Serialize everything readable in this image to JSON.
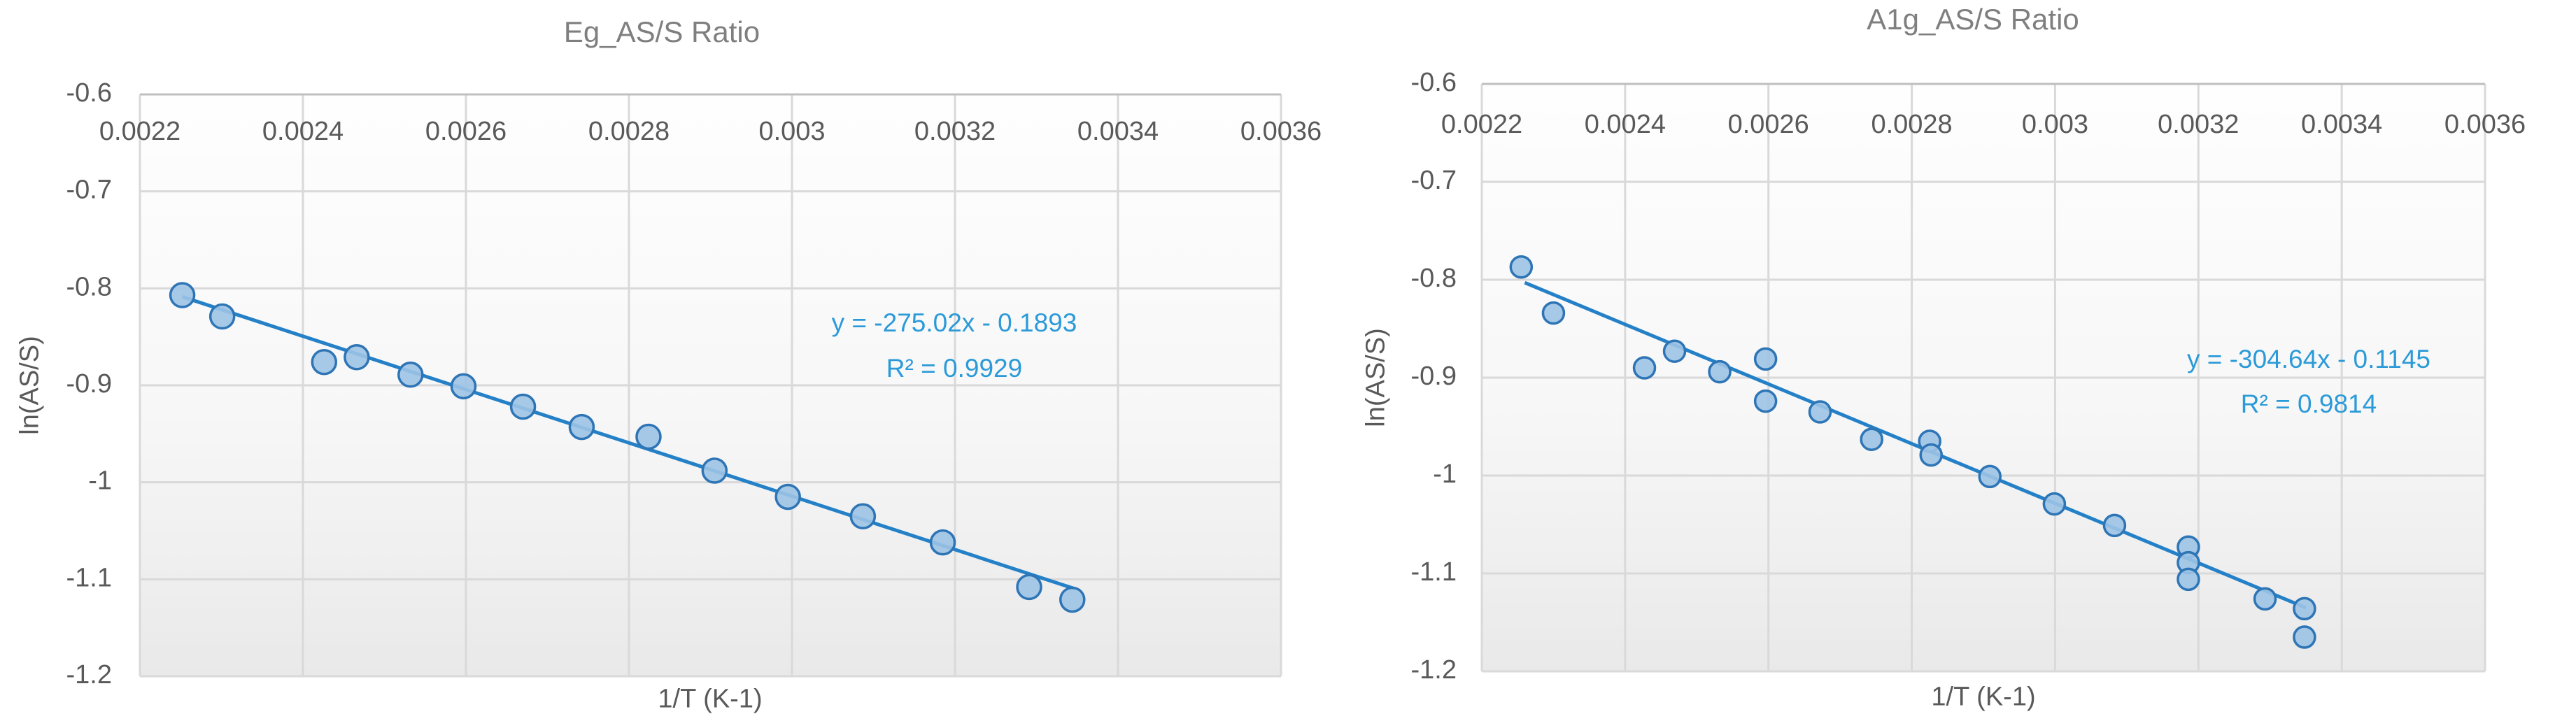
{
  "chart_data": [
    {
      "type": "scatter",
      "title": "Eg_AS/S Ratio",
      "xlabel": "1/T (K-1)",
      "ylabel": "ln(AS/S)",
      "xlim": [
        0.0022,
        0.0036
      ],
      "ylim": [
        -1.2,
        -0.6
      ],
      "grid": true,
      "xticks": {
        "values": [
          0.0022,
          0.0024,
          0.0026,
          0.0028,
          0.003,
          0.0032,
          0.0034,
          0.0036
        ],
        "labels": [
          "0.0022",
          "0.0024",
          "0.0026",
          "0.0028",
          "0.003",
          "0.0032",
          "0.0034",
          "0.0036"
        ]
      },
      "yticks": {
        "values": [
          -0.6,
          -0.7,
          -0.8,
          -0.9,
          -1,
          -1.1,
          -1.2
        ],
        "labels": [
          "-0.6",
          "-0.7",
          "-0.8",
          "-0.9",
          "-1",
          "-1.1",
          "-1.2"
        ]
      },
      "series": [
        {
          "name": "Eg_AS/S",
          "points": [
            [
              0.002252,
              -0.807
            ],
            [
              0.002301,
              -0.829
            ],
            [
              0.002426,
              -0.876
            ],
            [
              0.002466,
              -0.871
            ],
            [
              0.002532,
              -0.889
            ],
            [
              0.002597,
              -0.901
            ],
            [
              0.00267,
              -0.922
            ],
            [
              0.002742,
              -0.943
            ],
            [
              0.002824,
              -0.953
            ],
            [
              0.002905,
              -0.988
            ],
            [
              0.002995,
              -1.015
            ],
            [
              0.003087,
              -1.035
            ],
            [
              0.003185,
              -1.062
            ],
            [
              0.003291,
              -1.108
            ],
            [
              0.003344,
              -1.121
            ]
          ]
        }
      ],
      "trendline": {
        "slope": -275.02,
        "intercept": -0.1893,
        "r_squared": 0.9929,
        "x_start": 0.002252,
        "x_end": 0.003348,
        "label_line1": "y = -275.02x - 0.1893",
        "label_line2": "R² = 0.9929"
      }
    },
    {
      "type": "scatter",
      "title": "A1g_AS/S Ratio",
      "xlabel": "1/T (K-1)",
      "ylabel": "ln(AS/S)",
      "xlim": [
        0.0022,
        0.0036
      ],
      "ylim": [
        -1.2,
        -0.6
      ],
      "grid": true,
      "xticks": {
        "values": [
          0.0022,
          0.0024,
          0.0026,
          0.0028,
          0.003,
          0.0032,
          0.0034,
          0.0036
        ],
        "labels": [
          "0.0022",
          "0.0024",
          "0.0026",
          "0.0028",
          "0.003",
          "0.0032",
          "0.0034",
          "0.0036"
        ]
      },
      "yticks": {
        "values": [
          -0.6,
          -0.7,
          -0.8,
          -0.9,
          -1,
          -1.1,
          -1.2
        ],
        "labels": [
          "-0.6",
          "-0.7",
          "-0.8",
          "-0.9",
          "-1",
          "-1.1",
          "-1.2"
        ]
      },
      "series": [
        {
          "name": "A1g_AS/S",
          "points": [
            [
              0.002255,
              -0.787
            ],
            [
              0.0023,
              -0.834
            ],
            [
              0.002427,
              -0.89
            ],
            [
              0.002469,
              -0.873
            ],
            [
              0.002532,
              -0.894
            ],
            [
              0.002596,
              -0.881
            ],
            [
              0.002596,
              -0.924
            ],
            [
              0.002672,
              -0.935
            ],
            [
              0.002744,
              -0.963
            ],
            [
              0.002825,
              -0.965
            ],
            [
              0.002827,
              -0.979
            ],
            [
              0.002909,
              -1.001
            ],
            [
              0.002999,
              -1.029
            ],
            [
              0.003083,
              -1.051
            ],
            [
              0.003186,
              -1.073
            ],
            [
              0.003186,
              -1.089
            ],
            [
              0.003186,
              -1.106
            ],
            [
              0.003293,
              -1.126
            ],
            [
              0.003348,
              -1.136
            ],
            [
              0.003348,
              -1.165
            ]
          ]
        }
      ],
      "trendline": {
        "slope": -304.64,
        "intercept": -0.1145,
        "r_squared": 0.9814,
        "x_start": 0.00226,
        "x_end": 0.00335,
        "label_line1": "y = -304.64x - 0.1145",
        "label_line2": "R² = 0.9814"
      }
    }
  ],
  "colors": {
    "marker_fill": "#9dc3e6",
    "marker_stroke": "#2e75b6",
    "trendline": "#2480c7",
    "equation_text": "#2b9ad8",
    "gridline": "#d9d9d9",
    "axis_line": "#bfbfbf",
    "tick_text": "#595959",
    "title_text": "#7f7f7f",
    "plot_fill_top": "#fefefe",
    "plot_fill_bottom": "#e9e9e9"
  }
}
